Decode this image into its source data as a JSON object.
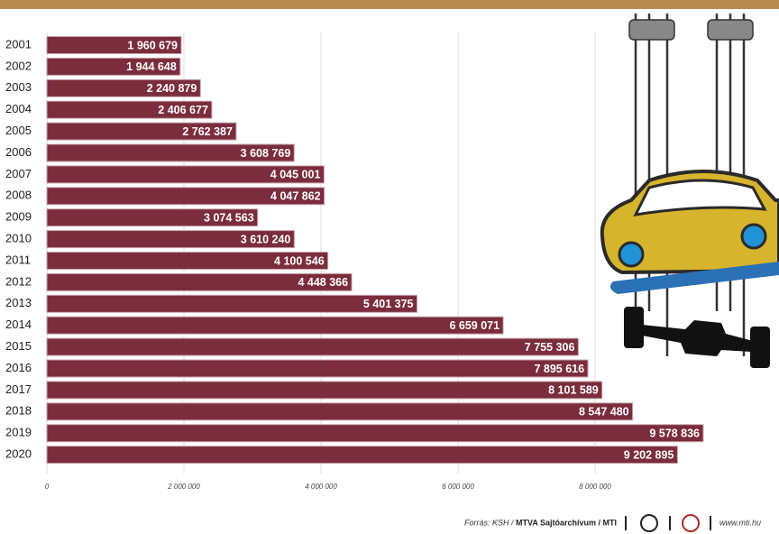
{
  "chart_data": {
    "type": "bar",
    "orientation": "horizontal",
    "categories": [
      "2001",
      "2002",
      "2003",
      "2004",
      "2005",
      "2006",
      "2007",
      "2008",
      "2009",
      "2010",
      "2011",
      "2012",
      "2013",
      "2014",
      "2015",
      "2016",
      "2017",
      "2018",
      "2019",
      "2020"
    ],
    "values": [
      1960679,
      1944648,
      2240879,
      2406677,
      2762387,
      3608769,
      4045001,
      4047862,
      3074563,
      3610240,
      4100546,
      4448366,
      5401375,
      6659071,
      7755306,
      7895616,
      8101589,
      8547480,
      9578836,
      9202895
    ],
    "value_labels": [
      "1 960 679",
      "1 944 648",
      "2 240 879",
      "2 406 677",
      "2 762 387",
      "3 608 769",
      "4 045 001",
      "4 047 862",
      "3 074 563",
      "3 610 240",
      "4 100 546",
      "4 448 366",
      "5 401 375",
      "6 659 071",
      "7 755 306",
      "7 895 616",
      "8 101 589",
      "8 547 480",
      "9 578 836",
      "9 202 895"
    ],
    "color": "#7b2d3d",
    "xlim": [
      0,
      10000000
    ],
    "xticks": [
      0,
      {
        "value": 2000000,
        "label": "2 000 000"
      },
      {
        "value": 4000000,
        "label": "4 000 000"
      },
      {
        "value": 6000000,
        "label": "6 000 000"
      },
      {
        "value": 8000000,
        "label": "8 000 000"
      }
    ],
    "grid": true
  },
  "footer": {
    "source": "Forrás: KSH /",
    "publisher": "MTVA Sajtóarchívum / MTI",
    "website": "www.mti.hu"
  }
}
